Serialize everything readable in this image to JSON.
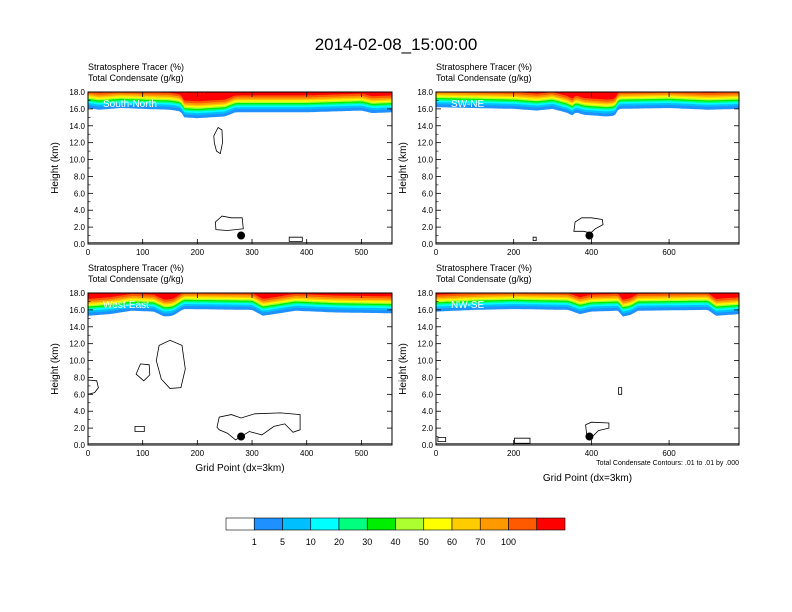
{
  "title": "2014-02-08_15:00:00",
  "footnote": "Total Condensate Contours: .01 to .01 by .000",
  "colorbar": {
    "labels": [
      "1",
      "5",
      "10",
      "20",
      "30",
      "40",
      "50",
      "60",
      "70",
      "100"
    ],
    "colors": [
      "#ffffff",
      "#1e90ff",
      "#00bfff",
      "#00ffff",
      "#00ff7f",
      "#00ee00",
      "#adff2f",
      "#ffff00",
      "#ffcc00",
      "#ff9900",
      "#ff5a00",
      "#ff0000"
    ]
  },
  "chart_data": [
    {
      "type": "heatmap",
      "panel_label": "South-North",
      "title_line1": "Stratosphere Tracer   (%)",
      "title_line2": "Total Condensate   (g/kg)",
      "ylabel": "Height (km)",
      "xlabel": "",
      "xlim": [
        0,
        556
      ],
      "ylim": [
        0,
        18
      ],
      "xticks": [
        0,
        100,
        200,
        300,
        400,
        500
      ],
      "yticks": [
        "0.0",
        "2.0",
        "4.0",
        "6.0",
        "8.0",
        "10.0",
        "12.0",
        "14.0",
        "16.0",
        "18.0"
      ],
      "tropopause": [
        [
          0,
          16.1
        ],
        [
          20,
          15.9
        ],
        [
          40,
          16.0
        ],
        [
          60,
          16.1
        ],
        [
          100,
          16.0
        ],
        [
          150,
          15.9
        ],
        [
          170,
          15.7
        ],
        [
          175,
          15.0
        ],
        [
          200,
          14.9
        ],
        [
          250,
          15.1
        ],
        [
          270,
          15.6
        ],
        [
          400,
          15.6
        ],
        [
          500,
          15.8
        ],
        [
          520,
          15.5
        ],
        [
          556,
          15.6
        ]
      ],
      "point": [
        280,
        1.0
      ],
      "contours": [
        [
          [
            230,
            12.8
          ],
          [
            238,
            13.8
          ],
          [
            245,
            13.5
          ],
          [
            246,
            12.0
          ],
          [
            242,
            10.7
          ],
          [
            235,
            11.0
          ],
          [
            231,
            12.0
          ]
        ],
        [
          [
            234,
            1.7
          ],
          [
            233,
            2.6
          ],
          [
            245,
            3.3
          ],
          [
            262,
            3.1
          ],
          [
            282,
            3.1
          ],
          [
            284,
            1.8
          ],
          [
            270,
            1.7
          ],
          [
            255,
            1.6
          ]
        ],
        [
          [
            368,
            0.3
          ],
          [
            368,
            0.8
          ],
          [
            392,
            0.8
          ],
          [
            392,
            0.3
          ]
        ]
      ]
    },
    {
      "type": "heatmap",
      "panel_label": "SW-NE",
      "title_line1": "Stratosphere Tracer   (%)",
      "title_line2": "Total Condensate   (g/kg)",
      "ylabel": "Height (km)",
      "xlabel": "",
      "xlim": [
        0,
        780
      ],
      "ylim": [
        0,
        18
      ],
      "xticks": [
        0,
        200,
        400,
        600
      ],
      "yticks": [
        "0.0",
        "2.0",
        "4.0",
        "6.0",
        "8.0",
        "10.0",
        "12.0",
        "14.0",
        "16.0",
        "18.0"
      ],
      "tropopause": [
        [
          0,
          16.2
        ],
        [
          100,
          16.1
        ],
        [
          200,
          16.0
        ],
        [
          260,
          15.8
        ],
        [
          280,
          15.9
        ],
        [
          300,
          16.0
        ],
        [
          340,
          15.5
        ],
        [
          350,
          15.2
        ],
        [
          360,
          15.6
        ],
        [
          380,
          15.3
        ],
        [
          440,
          15.1
        ],
        [
          460,
          15.2
        ],
        [
          470,
          16.0
        ],
        [
          600,
          16.1
        ],
        [
          700,
          15.9
        ],
        [
          780,
          16.0
        ]
      ],
      "point": [
        395,
        1.0
      ],
      "contours": [
        [
          [
            355,
            1.5
          ],
          [
            358,
            2.6
          ],
          [
            375,
            3.1
          ],
          [
            400,
            3.1
          ],
          [
            428,
            2.9
          ],
          [
            430,
            2.3
          ],
          [
            410,
            1.8
          ],
          [
            398,
            1.3
          ],
          [
            380,
            1.5
          ]
        ],
        [
          [
            250,
            0.4
          ],
          [
            250,
            0.8
          ],
          [
            258,
            0.8
          ],
          [
            258,
            0.4
          ]
        ]
      ]
    },
    {
      "type": "heatmap",
      "panel_label": "West-East",
      "title_line1": "Stratosphere Tracer   (%)",
      "title_line2": "Total Condensate   (g/kg)",
      "ylabel": "Height (km)",
      "xlabel": "Grid Point (dx=3km)",
      "xlim": [
        0,
        556
      ],
      "ylim": [
        0,
        18
      ],
      "xticks": [
        0,
        100,
        200,
        300,
        400,
        500
      ],
      "yticks": [
        "0.0",
        "2.0",
        "4.0",
        "6.0",
        "8.0",
        "10.0",
        "12.0",
        "14.0",
        "16.0",
        "18.0"
      ],
      "tropopause": [
        [
          0,
          15.3
        ],
        [
          40,
          15.5
        ],
        [
          80,
          15.9
        ],
        [
          120,
          15.8
        ],
        [
          140,
          15.2
        ],
        [
          155,
          15.3
        ],
        [
          175,
          16.1
        ],
        [
          300,
          16.0
        ],
        [
          320,
          15.3
        ],
        [
          340,
          15.5
        ],
        [
          380,
          15.9
        ],
        [
          450,
          15.7
        ],
        [
          556,
          15.6
        ]
      ],
      "point": [
        280,
        1.0
      ],
      "contours": [
        [
          [
            125,
            10.0
          ],
          [
            130,
            11.8
          ],
          [
            150,
            12.4
          ],
          [
            172,
            11.8
          ],
          [
            178,
            9.0
          ],
          [
            170,
            6.8
          ],
          [
            150,
            6.7
          ],
          [
            134,
            7.8
          ]
        ],
        [
          [
            88,
            8.4
          ],
          [
            96,
            9.6
          ],
          [
            112,
            9.5
          ],
          [
            113,
            8.3
          ],
          [
            102,
            7.6
          ]
        ],
        [
          [
            0,
            7.7
          ],
          [
            0,
            6.0
          ],
          [
            12,
            6.2
          ],
          [
            19,
            6.8
          ],
          [
            16,
            7.6
          ]
        ],
        [
          [
            86,
            1.6
          ],
          [
            86,
            2.2
          ],
          [
            103,
            2.2
          ],
          [
            103,
            1.6
          ]
        ],
        [
          [
            236,
            2.1
          ],
          [
            240,
            3.3
          ],
          [
            262,
            3.6
          ],
          [
            280,
            3.2
          ],
          [
            305,
            3.7
          ],
          [
            352,
            3.8
          ],
          [
            388,
            3.6
          ],
          [
            388,
            1.8
          ],
          [
            375,
            1.5
          ],
          [
            360,
            2.5
          ],
          [
            340,
            2.2
          ],
          [
            318,
            1.2
          ],
          [
            295,
            1.6
          ],
          [
            270,
            0.6
          ],
          [
            255,
            1.4
          ],
          [
            240,
            1.8
          ]
        ]
      ]
    },
    {
      "type": "heatmap",
      "panel_label": "NW-SE",
      "title_line1": "Stratosphere Tracer   (%)",
      "title_line2": "Total Condensate   (g/kg)",
      "ylabel": "Height (km)",
      "xlabel": "Grid Point (dx=3km)",
      "xlim": [
        0,
        780
      ],
      "ylim": [
        0,
        18
      ],
      "xticks": [
        0,
        200,
        400,
        600
      ],
      "yticks": [
        "0.0",
        "2.0",
        "4.0",
        "6.0",
        "8.0",
        "10.0",
        "12.0",
        "14.0",
        "16.0",
        "18.0"
      ],
      "tropopause": [
        [
          0,
          15.8
        ],
        [
          100,
          16.0
        ],
        [
          200,
          16.1
        ],
        [
          340,
          16.0
        ],
        [
          370,
          15.5
        ],
        [
          400,
          15.8
        ],
        [
          470,
          15.9
        ],
        [
          480,
          15.2
        ],
        [
          500,
          15.4
        ],
        [
          520,
          15.9
        ],
        [
          700,
          16.0
        ],
        [
          720,
          15.3
        ],
        [
          780,
          15.5
        ]
      ],
      "point": [
        395,
        1.0
      ],
      "contours": [
        [
          [
            388,
            1.2
          ],
          [
            385,
            2.4
          ],
          [
            400,
            2.7
          ],
          [
            445,
            2.6
          ],
          [
            445,
            2.0
          ],
          [
            418,
            1.7
          ],
          [
            405,
            1.1
          ]
        ],
        [
          [
            470,
            6.0
          ],
          [
            470,
            6.8
          ],
          [
            478,
            6.8
          ],
          [
            478,
            6.0
          ]
        ],
        [
          [
            202,
            0.2
          ],
          [
            202,
            0.8
          ],
          [
            242,
            0.8
          ],
          [
            242,
            0.2
          ]
        ],
        [
          [
            5,
            0.4
          ],
          [
            5,
            0.9
          ],
          [
            25,
            0.9
          ],
          [
            25,
            0.4
          ]
        ]
      ]
    }
  ]
}
